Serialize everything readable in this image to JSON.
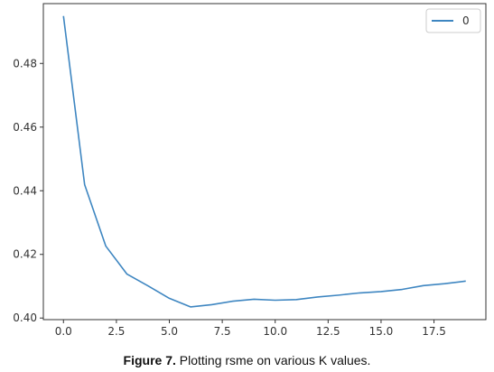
{
  "chart_data": {
    "type": "line",
    "series": [
      {
        "name": "0",
        "color": "#3e86c1",
        "x": [
          0,
          1,
          2,
          3,
          4,
          5,
          6,
          7,
          8,
          9,
          10,
          11,
          12,
          13,
          14,
          15,
          16,
          17,
          18,
          19
        ],
        "values": [
          0.4949,
          0.4419,
          0.4226,
          0.4138,
          0.4101,
          0.4062,
          0.4035,
          0.4042,
          0.4053,
          0.4059,
          0.4056,
          0.4058,
          0.4066,
          0.4072,
          0.4079,
          0.4083,
          0.409,
          0.4102,
          0.4108,
          0.4116
        ]
      }
    ],
    "xlim": [
      -0.95,
      19.95
    ],
    "ylim": [
      0.3995,
      0.4988
    ],
    "xticks": [
      0.0,
      2.5,
      5.0,
      7.5,
      10.0,
      12.5,
      15.0,
      17.5
    ],
    "xtick_labels": [
      "0.0",
      "2.5",
      "5.0",
      "7.5",
      "10.0",
      "12.5",
      "15.0",
      "17.5"
    ],
    "yticks": [
      0.4,
      0.42,
      0.44,
      0.46,
      0.48
    ],
    "ytick_labels": [
      "0.40",
      "0.42",
      "0.44",
      "0.46",
      "0.48"
    ],
    "grid": false,
    "legend_position": "top-right"
  },
  "caption": {
    "prefix": "Figure 7.",
    "text": " Plotting rsme on various K values."
  }
}
